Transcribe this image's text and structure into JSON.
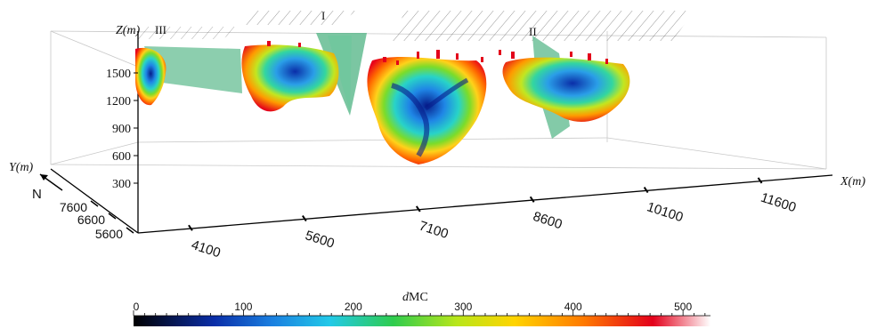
{
  "chart_data": {
    "type": "3d-volume-slice",
    "axes": {
      "z": {
        "label": "Z(m)",
        "ticks": [
          "1500",
          "1200",
          "900",
          "600",
          "300"
        ]
      },
      "y": {
        "label": "Y(m)",
        "ticks": [
          "7600",
          "6600",
          "5600"
        ]
      },
      "x": {
        "label": "X(m)",
        "ticks": [
          "4100",
          "5600",
          "7100",
          "8600",
          "10100",
          "11600"
        ]
      }
    },
    "north_label": "N",
    "faults": [
      "III",
      "I",
      "II"
    ],
    "colorbar": {
      "title_italic": "d",
      "title_rest": "MC",
      "ticks": [
        "0",
        "100",
        "200",
        "300",
        "400",
        "500"
      ],
      "range": [
        0,
        525
      ],
      "colors": [
        "#000000",
        "#0a2ea8",
        "#1a7fe0",
        "#22c9e8",
        "#2ecc4e",
        "#b8e61a",
        "#ffd400",
        "#ff7a00",
        "#e3001b",
        "#ffffff"
      ]
    }
  }
}
